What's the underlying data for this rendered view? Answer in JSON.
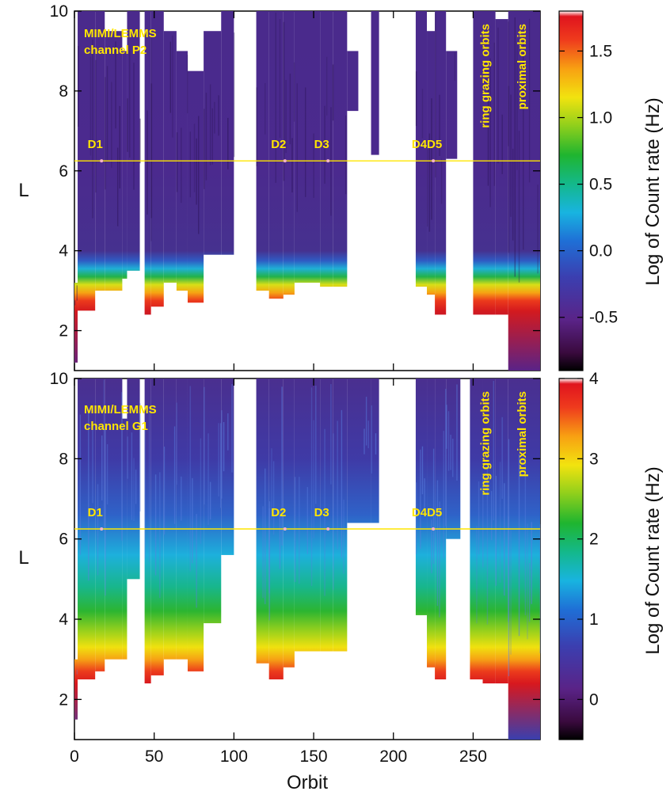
{
  "chart_data": {
    "type": "heatmap",
    "xlabel": "Orbit",
    "x_ticks": [
      0,
      50,
      100,
      150,
      200,
      250
    ],
    "xlim": [
      0,
      292
    ],
    "panels": [
      {
        "id": "p2",
        "ylabel": "L",
        "ylim": [
          1,
          10
        ],
        "y_ticks": [
          2,
          4,
          6,
          8,
          10
        ],
        "label_lines": [
          "MIMI/LEMMS",
          "channel P2"
        ],
        "colorbar": {
          "label": "Log of Count rate (Hz)",
          "range": [
            -0.9,
            1.8
          ],
          "ticks": [
            -0.5,
            0.0,
            0.5,
            1.0,
            1.5
          ],
          "tick_labels": [
            "-0.5",
            "0.0",
            "0.5",
            "1.0",
            "1.5"
          ]
        },
        "threshold_L": 6.25,
        "events": [
          {
            "label": "D1",
            "orbit": 16
          },
          {
            "label": "D2",
            "orbit": 131
          },
          {
            "label": "D3",
            "orbit": 158
          },
          {
            "label": "D4D5",
            "orbit": 224
          }
        ],
        "region_labels": [
          {
            "text": "ring grazing orbits",
            "orbit": 260
          },
          {
            "text": "proximal orbits",
            "orbit": 283
          }
        ],
        "coverage": [
          {
            "orbits": [
              0,
              2
            ],
            "Lmax": 3.2,
            "Lmin": 1.2
          },
          {
            "orbits": [
              2,
              13
            ],
            "Lmax": 10.0,
            "Lmin": 2.5
          },
          {
            "orbits": [
              13,
              19
            ],
            "Lmax": 10.0,
            "Lmin": 3.0
          },
          {
            "orbits": [
              19,
              30
            ],
            "Lmax": 9.5,
            "Lmin": 3.0
          },
          {
            "orbits": [
              30,
              33
            ],
            "Lmax": 9.0,
            "Lmin": 3.3
          },
          {
            "orbits": [
              33,
              41
            ],
            "Lmax": 10.0,
            "Lmin": 3.5
          },
          {
            "orbits": [
              44,
              48
            ],
            "Lmax": 10.0,
            "Lmin": 2.4
          },
          {
            "orbits": [
              48,
              56
            ],
            "Lmax": 10.0,
            "Lmin": 2.6
          },
          {
            "orbits": [
              56,
              64
            ],
            "Lmax": 9.5,
            "Lmin": 3.2
          },
          {
            "orbits": [
              64,
              71
            ],
            "Lmax": 9.0,
            "Lmin": 3.0
          },
          {
            "orbits": [
              71,
              81
            ],
            "Lmax": 8.5,
            "Lmin": 2.7
          },
          {
            "orbits": [
              81,
              92
            ],
            "Lmax": 9.5,
            "Lmin": 3.9
          },
          {
            "orbits": [
              92,
              100
            ],
            "Lmax": 10.0,
            "Lmin": 3.9
          },
          {
            "orbits": [
              114,
              122
            ],
            "Lmax": 10.0,
            "Lmin": 3.0
          },
          {
            "orbits": [
              122,
              131
            ],
            "Lmax": 10.0,
            "Lmin": 2.8
          },
          {
            "orbits": [
              131,
              138
            ],
            "Lmax": 10.0,
            "Lmin": 2.9
          },
          {
            "orbits": [
              138,
              154
            ],
            "Lmax": 10.0,
            "Lmin": 3.2
          },
          {
            "orbits": [
              154,
              162
            ],
            "Lmax": 10.0,
            "Lmin": 3.1
          },
          {
            "orbits": [
              162,
              171
            ],
            "Lmax": 10.0,
            "Lmin": 3.1
          },
          {
            "orbits": [
              171,
              178
            ],
            "Lmax": 9.0,
            "Lmin": 7.5
          },
          {
            "orbits": [
              186,
              191
            ],
            "Lmax": 10.0,
            "Lmin": 6.4
          },
          {
            "orbits": [
              214,
              221
            ],
            "Lmax": 10.0,
            "Lmin": 3.1
          },
          {
            "orbits": [
              221,
              226
            ],
            "Lmax": 9.5,
            "Lmin": 2.9
          },
          {
            "orbits": [
              226,
              233
            ],
            "Lmax": 10.0,
            "Lmin": 2.4
          },
          {
            "orbits": [
              233,
              240
            ],
            "Lmax": 9.0,
            "Lmin": 6.3
          },
          {
            "orbits": [
              250,
              264
            ],
            "Lmax": 10.0,
            "Lmin": 2.4
          },
          {
            "orbits": [
              264,
              272
            ],
            "Lmax": 9.8,
            "Lmin": 2.4
          },
          {
            "orbits": [
              272,
              292
            ],
            "Lmax": 10.0,
            "Lmin": 1.0
          }
        ]
      },
      {
        "id": "g1",
        "ylabel": "L",
        "ylim": [
          1,
          10
        ],
        "y_ticks": [
          2,
          4,
          6,
          8,
          10
        ],
        "label_lines": [
          "MIMI/LEMMS",
          "channel G1"
        ],
        "colorbar": {
          "label": "Log of Count rate (Hz)",
          "range": [
            -0.5,
            4.0
          ],
          "ticks": [
            0,
            1,
            2,
            3,
            4
          ],
          "tick_labels": [
            "0",
            "1",
            "2",
            "3",
            "4"
          ]
        },
        "threshold_L": 6.25,
        "events": [
          {
            "label": "D1",
            "orbit": 16
          },
          {
            "label": "D2",
            "orbit": 131
          },
          {
            "label": "D3",
            "orbit": 158
          },
          {
            "label": "D4D5",
            "orbit": 224
          }
        ],
        "region_labels": [
          {
            "text": "ring grazing orbits",
            "orbit": 260
          },
          {
            "text": "proximal orbits",
            "orbit": 283
          }
        ],
        "coverage": [
          {
            "orbits": [
              0,
              2
            ],
            "Lmax": 3.0,
            "Lmin": 1.5
          },
          {
            "orbits": [
              2,
              13
            ],
            "Lmax": 10.0,
            "Lmin": 2.5
          },
          {
            "orbits": [
              13,
              19
            ],
            "Lmax": 10.0,
            "Lmin": 2.7
          },
          {
            "orbits": [
              19,
              30
            ],
            "Lmax": 10.0,
            "Lmin": 3.0
          },
          {
            "orbits": [
              30,
              33
            ],
            "Lmax": 9.0,
            "Lmin": 3.0
          },
          {
            "orbits": [
              33,
              41
            ],
            "Lmax": 10.0,
            "Lmin": 5.0
          },
          {
            "orbits": [
              44,
              48
            ],
            "Lmax": 10.0,
            "Lmin": 2.4
          },
          {
            "orbits": [
              48,
              56
            ],
            "Lmax": 10.0,
            "Lmin": 2.6
          },
          {
            "orbits": [
              56,
              64
            ],
            "Lmax": 10.0,
            "Lmin": 3.0
          },
          {
            "orbits": [
              64,
              71
            ],
            "Lmax": 10.0,
            "Lmin": 3.0
          },
          {
            "orbits": [
              71,
              81
            ],
            "Lmax": 10.0,
            "Lmin": 2.7
          },
          {
            "orbits": [
              81,
              92
            ],
            "Lmax": 10.0,
            "Lmin": 3.9
          },
          {
            "orbits": [
              92,
              100
            ],
            "Lmax": 10.0,
            "Lmin": 5.6
          },
          {
            "orbits": [
              114,
              122
            ],
            "Lmax": 10.0,
            "Lmin": 2.9
          },
          {
            "orbits": [
              122,
              131
            ],
            "Lmax": 10.0,
            "Lmin": 2.5
          },
          {
            "orbits": [
              131,
              138
            ],
            "Lmax": 10.0,
            "Lmin": 2.8
          },
          {
            "orbits": [
              138,
              154
            ],
            "Lmax": 10.0,
            "Lmin": 3.2
          },
          {
            "orbits": [
              154,
              162
            ],
            "Lmax": 10.0,
            "Lmin": 3.2
          },
          {
            "orbits": [
              162,
              171
            ],
            "Lmax": 10.0,
            "Lmin": 3.2
          },
          {
            "orbits": [
              171,
              186
            ],
            "Lmax": 10.0,
            "Lmin": 6.4
          },
          {
            "orbits": [
              186,
              191
            ],
            "Lmax": 10.0,
            "Lmin": 6.4
          },
          {
            "orbits": [
              214,
              221
            ],
            "Lmax": 10.0,
            "Lmin": 4.1
          },
          {
            "orbits": [
              221,
              226
            ],
            "Lmax": 10.0,
            "Lmin": 2.8
          },
          {
            "orbits": [
              226,
              233
            ],
            "Lmax": 10.0,
            "Lmin": 2.5
          },
          {
            "orbits": [
              233,
              242
            ],
            "Lmax": 10.0,
            "Lmin": 6.0
          },
          {
            "orbits": [
              248,
              256
            ],
            "Lmax": 10.0,
            "Lmin": 2.5
          },
          {
            "orbits": [
              256,
              264
            ],
            "Lmax": 10.0,
            "Lmin": 2.4
          },
          {
            "orbits": [
              264,
              272
            ],
            "Lmax": 10.0,
            "Lmin": 2.4
          },
          {
            "orbits": [
              272,
              292
            ],
            "Lmax": 10.0,
            "Lmin": 1.0
          }
        ]
      }
    ]
  }
}
